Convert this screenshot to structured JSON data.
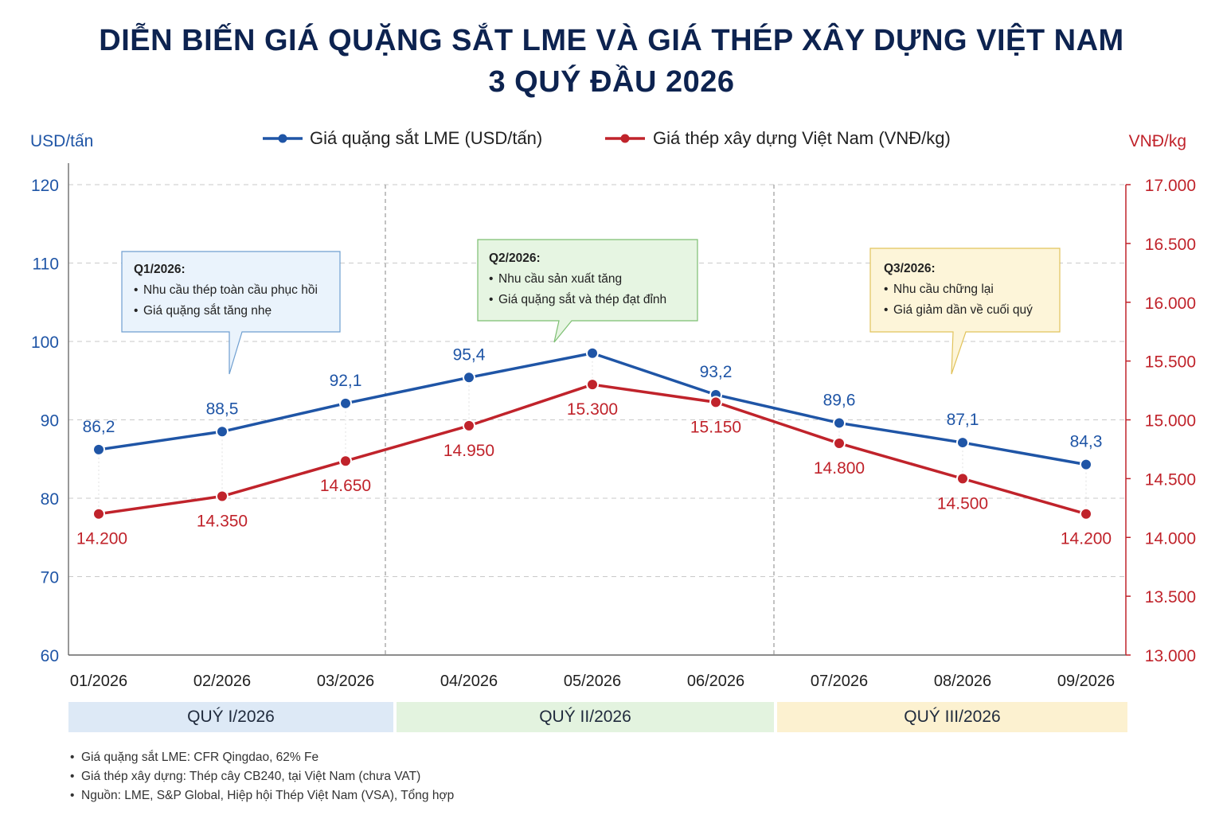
{
  "title": {
    "line1": "DIỄN BIẾN GIÁ QUẶNG SẮT LME VÀ GIÁ THÉP XÂY DỰNG VIỆT NAM",
    "line2": "3 QUÝ ĐẦU 2026"
  },
  "colors": {
    "title": "#0d2350",
    "ore": "#1f55a6",
    "steel": "#c0232b",
    "q1_band": "#dde9f6",
    "q2_band": "#e3f3df",
    "q3_band": "#fcf1d0"
  },
  "chart_data": {
    "type": "line",
    "x": [
      "01/2026",
      "02/2026",
      "03/2026",
      "04/2026",
      "05/2026",
      "06/2026",
      "07/2026",
      "08/2026",
      "09/2026"
    ],
    "series": [
      {
        "name": "Giá quặng sắt LME (USD/tấn)",
        "axis": "left",
        "values": [
          86.2,
          88.5,
          92.1,
          95.4,
          98.5,
          93.2,
          89.6,
          87.1,
          84.3
        ],
        "labels": [
          "86,2",
          "88,5",
          "92,1",
          "95,4",
          "",
          "93,2",
          "89,6",
          "87,1",
          "84,3"
        ]
      },
      {
        "name": "Giá thép xây dựng Việt Nam (VNĐ/kg)",
        "axis": "right",
        "values": [
          14200,
          14350,
          14650,
          14950,
          15300,
          15150,
          14800,
          14500,
          14200
        ],
        "labels": [
          "14.200",
          "14.350",
          "14.650",
          "14.950",
          "15.300",
          "15.150",
          "14.800",
          "14.500",
          "14.200"
        ]
      }
    ],
    "ylabel_left": "USD/tấn",
    "ylabel_right": "VNĐ/kg",
    "ylim_left": [
      60,
      120
    ],
    "ylim_right": [
      13000,
      17000
    ],
    "yticks_left": [
      "60",
      "70",
      "80",
      "90",
      "100",
      "110",
      "120"
    ],
    "yticks_right": [
      "13.000",
      "13.500",
      "14.000",
      "14.500",
      "15.000",
      "15.500",
      "16.000",
      "16.500",
      "17.000"
    ],
    "grid": true,
    "legend": "top-center"
  },
  "quarters": [
    {
      "label": "QUÝ I/2026"
    },
    {
      "label": "QUÝ II/2026"
    },
    {
      "label": "QUÝ III/2026"
    }
  ],
  "callouts": [
    {
      "title": "Q1/2026:",
      "items": [
        "Nhu cầu thép toàn cầu phục hồi",
        "Giá quặng sắt tăng nhẹ"
      ]
    },
    {
      "title": "Q2/2026:",
      "items": [
        "Nhu cầu sản xuất tăng",
        "Giá quặng sắt và thép đạt đỉnh"
      ]
    },
    {
      "title": "Q3/2026:",
      "items": [
        "Nhu cầu chững lại",
        "Giá giảm dần về cuối quý"
      ]
    }
  ],
  "notes": [
    "Giá quặng sắt LME: CFR Qingdao, 62% Fe",
    "Giá thép xây dựng: Thép cây CB240, tại Việt Nam (chưa VAT)",
    "Nguồn: LME, S&P Global, Hiệp hội Thép Việt Nam (VSA), Tổng hợp"
  ]
}
